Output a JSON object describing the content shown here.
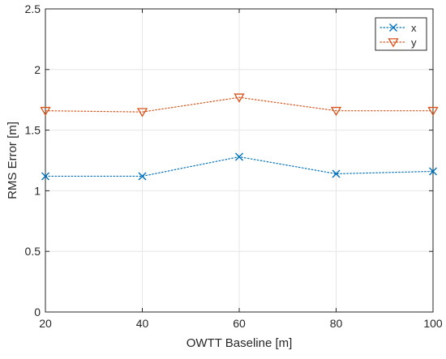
{
  "chart_data": {
    "type": "line",
    "title": "",
    "xlabel": "OWTT Baseline [m]",
    "ylabel": "RMS Error [m]",
    "x": [
      20,
      40,
      60,
      80,
      100
    ],
    "xlim": [
      20,
      100
    ],
    "ylim": [
      0,
      2.5
    ],
    "xticks": [
      20,
      40,
      60,
      80,
      100
    ],
    "yticks": [
      0,
      0.5,
      1,
      1.5,
      2,
      2.5
    ],
    "xtick_labels": [
      "20",
      "40",
      "60",
      "80",
      "100"
    ],
    "ytick_labels": [
      "0",
      "0.5",
      "1",
      "1.5",
      "2",
      "2.5"
    ],
    "grid": true,
    "legend_position": "top-right",
    "series": [
      {
        "name": "x",
        "values": [
          1.12,
          1.12,
          1.28,
          1.14,
          1.16
        ],
        "color": "#0072BD",
        "marker": "x-mark",
        "line_style": "dotted"
      },
      {
        "name": "y",
        "values": [
          1.66,
          1.65,
          1.77,
          1.66,
          1.66
        ],
        "color": "#D95319",
        "marker": "down-triangle",
        "line_style": "dotted"
      }
    ]
  }
}
